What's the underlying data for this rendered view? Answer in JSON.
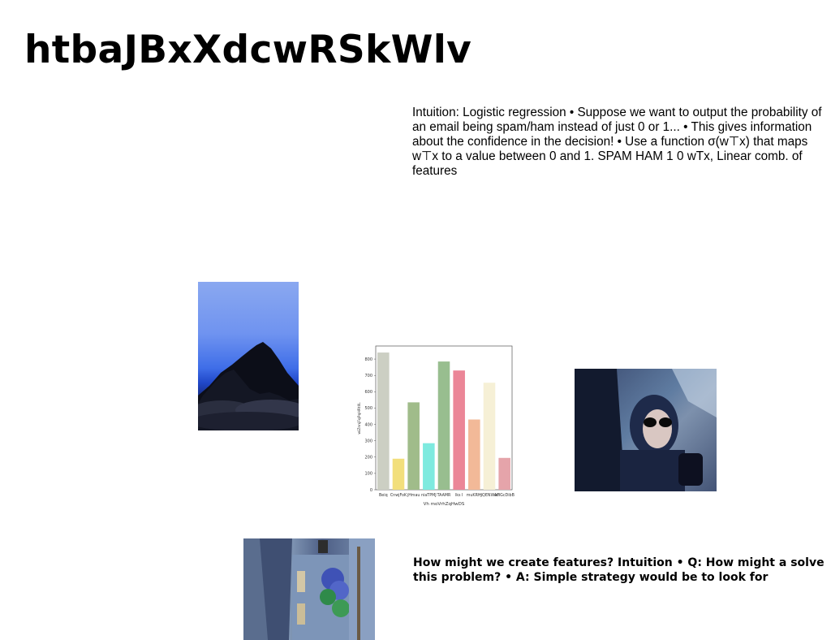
{
  "title": "htbaJBxXdcwRSkWlv",
  "text_block_1": "Intuition: Logistic regression • Suppose we want to output the probability of an email being spam/ham instead of just 0 or 1... • This gives information about the confidence in the decision! • Use a function σ(w⊤x) that maps w⊤x to a value between 0 and 1. SPAM HAM 1 0 wTx, Linear comb. of features",
  "text_block_2": "How might we create features? Intuition • Q: How might a solve this problem? • A: Simple strategy would be to look for",
  "images": {
    "mountain": "mountain-image",
    "woman": "woman-in-car-image",
    "street": "flowered-street-image"
  },
  "chart_data": {
    "type": "bar",
    "categories": [
      "Beiq",
      "CnwjFoK",
      "jHmau",
      "niaTPMJ",
      "TAAMR",
      "lks I",
      "muKRHJ",
      "nQENWAF",
      "wIIGcDibB"
    ],
    "values": [
      840,
      190,
      535,
      285,
      785,
      730,
      430,
      655,
      195
    ],
    "colors": [
      "#cccfc3",
      "#f2df7c",
      "#a0bc8a",
      "#7eeadf",
      "#98be8f",
      "#eb8697",
      "#f2b998",
      "#f6f0d6",
      "#e5a4aa"
    ],
    "xlabel": "Vh moVrhZqHwDS",
    "ylabel": "wiZnnjFqPqHRtllL",
    "ylim": [
      0,
      880
    ],
    "yticks": [
      0,
      100,
      200,
      300,
      400,
      500,
      600,
      700,
      800
    ],
    "grid": false
  }
}
